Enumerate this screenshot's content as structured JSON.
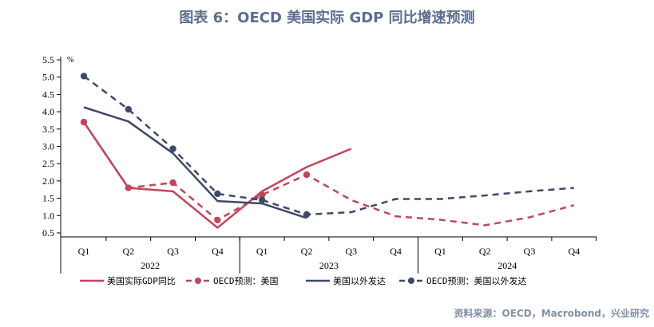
{
  "title": "图表 6：OECD 美国实际 GDP 同比增速预测",
  "source": "资料来源：OECD，Macrobond，兴业研究",
  "chart_data": {
    "type": "line",
    "unit": "%",
    "categories": [
      "Q1",
      "Q2",
      "Q3",
      "Q4",
      "Q1",
      "Q2",
      "Q3",
      "Q4",
      "Q1",
      "Q2",
      "Q3",
      "Q4"
    ],
    "years": [
      {
        "label": "2022",
        "start": 0,
        "end": 3
      },
      {
        "label": "2023",
        "start": 4,
        "end": 7
      },
      {
        "label": "2024",
        "start": 8,
        "end": 11
      }
    ],
    "yticks": [
      "0.5",
      "1.0",
      "1.5",
      "2.0",
      "2.5",
      "3.0",
      "3.5",
      "4.0",
      "4.5",
      "5.0",
      "5.5"
    ],
    "ylim": [
      0.5,
      5.5
    ],
    "grid": false,
    "legend_position": "bottom",
    "series": [
      {
        "name": "美国实际GDP同比",
        "color": "#c0465c",
        "dash": false,
        "marker": false,
        "values": [
          3.7,
          1.8,
          1.7,
          0.65,
          1.7,
          2.4,
          2.93,
          null,
          null,
          null,
          null,
          null
        ]
      },
      {
        "name": "OECD预测：美国",
        "color": "#c0465c",
        "dash": true,
        "marker": true,
        "marker_count": 6,
        "values": [
          3.7,
          1.8,
          1.95,
          0.87,
          1.6,
          2.18,
          1.45,
          0.98,
          0.88,
          0.72,
          0.95,
          1.3
        ]
      },
      {
        "name": "美国以外发达",
        "color": "#3d4a6b",
        "dash": false,
        "marker": false,
        "values": [
          4.13,
          3.72,
          2.8,
          1.42,
          1.35,
          0.93,
          null,
          null,
          null,
          null,
          null,
          null
        ]
      },
      {
        "name": "OECD预测：美国以外发达",
        "color": "#3d4a6b",
        "dash": true,
        "marker": true,
        "marker_count": 6,
        "values": [
          5.03,
          4.07,
          2.93,
          1.63,
          1.45,
          1.03,
          1.1,
          1.48,
          1.48,
          1.58,
          1.7,
          1.8
        ]
      }
    ]
  }
}
